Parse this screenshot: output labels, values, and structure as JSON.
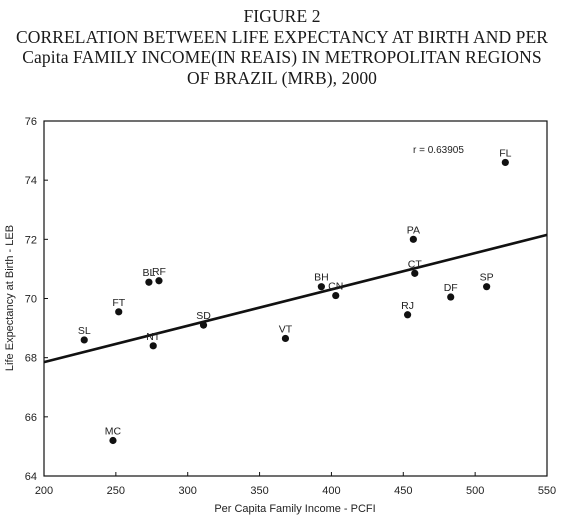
{
  "chart_data": {
    "type": "scatter",
    "figure_label": "FIGURE 2",
    "title_lines": [
      "CORRELATION BETWEEN LIFE EXPECTANCY AT BIRTH AND PER",
      "Capita FAMILY INCOME(IN REAIS) IN METROPOLITAN REGIONS",
      "OF BRAZIL (MRB), 2000"
    ],
    "xlabel": "Per Capita Family Income - PCFI",
    "ylabel": "Life Expectancy at Birth - LEB",
    "xlim": [
      200,
      550
    ],
    "ylim": [
      64,
      76
    ],
    "xticks": [
      200,
      250,
      300,
      350,
      400,
      450,
      500,
      550
    ],
    "yticks": [
      64,
      66,
      68,
      70,
      72,
      74,
      76
    ],
    "annotation": "r = 0.63905",
    "points": [
      {
        "label": "MC",
        "x": 248,
        "y": 65.2
      },
      {
        "label": "SL",
        "x": 228,
        "y": 68.6
      },
      {
        "label": "FT",
        "x": 252,
        "y": 69.55
      },
      {
        "label": "NT",
        "x": 276,
        "y": 68.4
      },
      {
        "label": "BL",
        "x": 273,
        "y": 70.55
      },
      {
        "label": "RF",
        "x": 280,
        "y": 70.6
      },
      {
        "label": "SD",
        "x": 311,
        "y": 69.1
      },
      {
        "label": "VT",
        "x": 368,
        "y": 68.65
      },
      {
        "label": "BH",
        "x": 393,
        "y": 70.4
      },
      {
        "label": "CN",
        "x": 403,
        "y": 70.1
      },
      {
        "label": "RJ",
        "x": 453,
        "y": 69.45
      },
      {
        "label": "PA",
        "x": 457,
        "y": 72.0
      },
      {
        "label": "CT",
        "x": 458,
        "y": 70.85
      },
      {
        "label": "DF",
        "x": 483,
        "y": 70.05
      },
      {
        "label": "SP",
        "x": 508,
        "y": 70.4
      },
      {
        "label": "FL",
        "x": 521,
        "y": 74.6
      }
    ],
    "trendline": [
      {
        "x": 200,
        "y": 67.85
      },
      {
        "x": 550,
        "y": 72.15
      }
    ],
    "grid": false,
    "legend": "none"
  }
}
